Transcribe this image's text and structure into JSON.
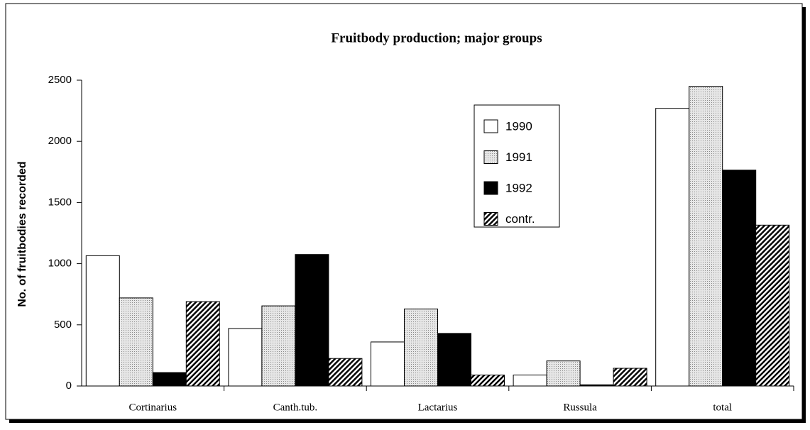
{
  "chart_data": {
    "type": "bar",
    "title": "Fruitbody production; major groups",
    "y_label": "No. of fruitbodies recorded",
    "categories": [
      "Cortinarius",
      "Canth.tub.",
      "Lactarius",
      "Russula",
      "total"
    ],
    "series": [
      {
        "name": "1990",
        "color": "#ffffff",
        "pattern": "solid",
        "values": [
          1065,
          470,
          360,
          90,
          2270
        ]
      },
      {
        "name": "1991",
        "color": "#dcdcdc",
        "pattern": "dots",
        "values": [
          720,
          655,
          630,
          205,
          2450
        ]
      },
      {
        "name": "1992",
        "color": "#000000",
        "pattern": "solid",
        "values": [
          110,
          1075,
          430,
          10,
          1765
        ]
      },
      {
        "name": "contr.",
        "color": "#000000",
        "pattern": "hatch",
        "values": [
          690,
          225,
          90,
          145,
          1315
        ]
      }
    ],
    "ylim": [
      0,
      2500
    ],
    "yticks": [
      0,
      500,
      1000,
      1500,
      2000,
      2500
    ],
    "grid": false,
    "legend": "upper-right"
  }
}
